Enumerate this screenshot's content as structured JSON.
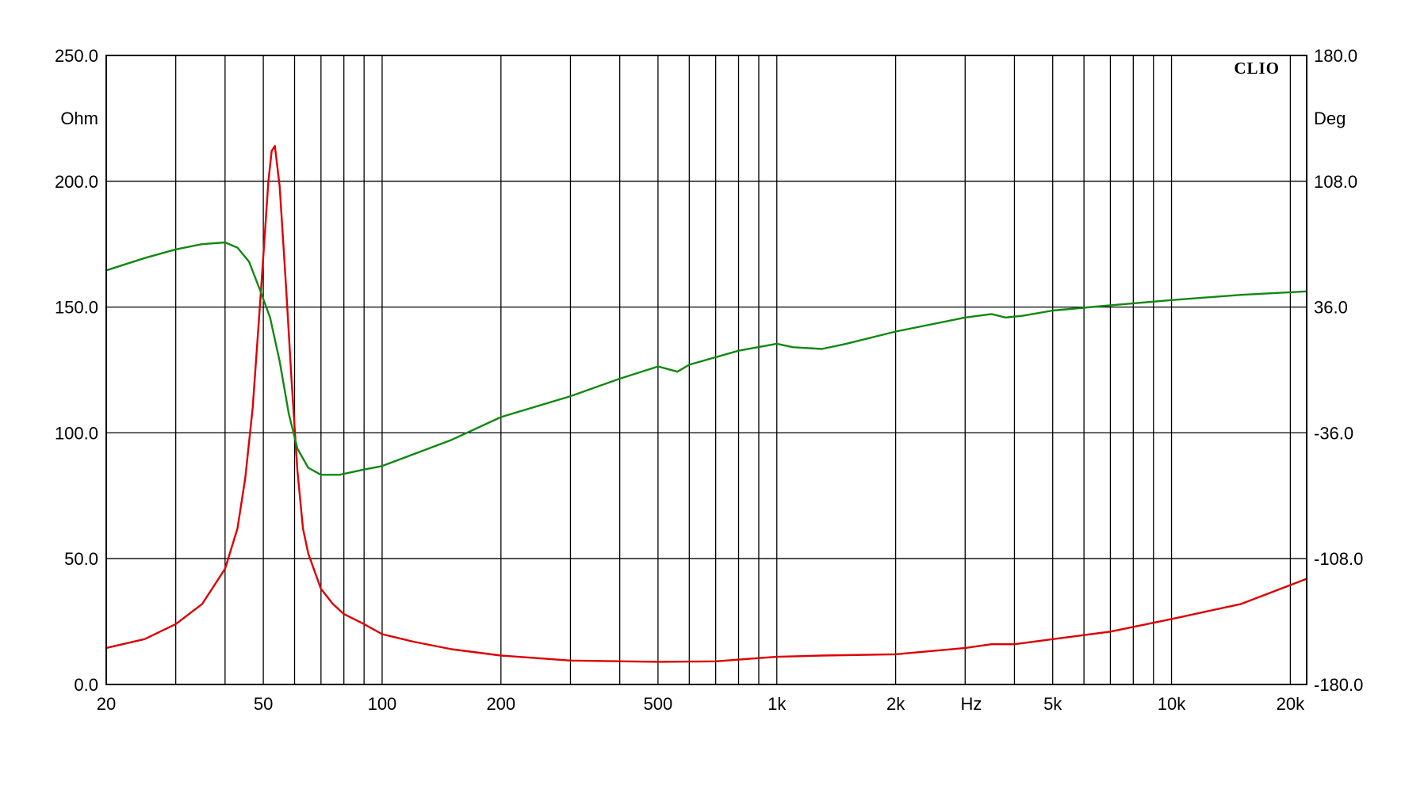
{
  "chart_data": {
    "type": "line",
    "brand": "CLIO",
    "y_left": {
      "unit_label": "Ohm",
      "range": [
        0,
        250
      ],
      "ticks": [
        "0.0",
        "50.0",
        "100.0",
        "150.0",
        "200.0",
        "250.0"
      ]
    },
    "y_right": {
      "unit_label": "Deg",
      "range": [
        -180,
        180
      ],
      "ticks": [
        "-180.0",
        "-108.0",
        "-36.0",
        "36.0",
        "108.0",
        "180.0"
      ]
    },
    "x_axis": {
      "scale": "log",
      "range": [
        20,
        22000
      ],
      "unit_label": "Hz",
      "tick_labels": [
        {
          "value": 20,
          "label": "20"
        },
        {
          "value": 50,
          "label": "50"
        },
        {
          "value": 100,
          "label": "100"
        },
        {
          "value": 200,
          "label": "200"
        },
        {
          "value": 500,
          "label": "500"
        },
        {
          "value": 1000,
          "label": "1k"
        },
        {
          "value": 2000,
          "label": "2k"
        },
        {
          "value": 5000,
          "label": "5k"
        },
        {
          "value": 10000,
          "label": "10k"
        },
        {
          "value": 20000,
          "label": "20k"
        }
      ],
      "gridlines": [
        20,
        30,
        40,
        50,
        60,
        70,
        80,
        90,
        100,
        200,
        300,
        400,
        500,
        600,
        700,
        800,
        900,
        1000,
        2000,
        3000,
        4000,
        5000,
        6000,
        7000,
        8000,
        9000,
        10000,
        20000
      ]
    },
    "grid": true,
    "series": [
      {
        "axis": "left",
        "color": "#dd0000",
        "points": [
          [
            20,
            14.5
          ],
          [
            25,
            18
          ],
          [
            30,
            24
          ],
          [
            35,
            32
          ],
          [
            40,
            46
          ],
          [
            43,
            62
          ],
          [
            45,
            82
          ],
          [
            47,
            110
          ],
          [
            49,
            150
          ],
          [
            50.5,
            180
          ],
          [
            51.5,
            200
          ],
          [
            52.5,
            212
          ],
          [
            53.5,
            214
          ],
          [
            55,
            198
          ],
          [
            57,
            160
          ],
          [
            59,
            120
          ],
          [
            61,
            85
          ],
          [
            63,
            62
          ],
          [
            65,
            52
          ],
          [
            70,
            38
          ],
          [
            75,
            32
          ],
          [
            80,
            28
          ],
          [
            90,
            24
          ],
          [
            100,
            20
          ],
          [
            120,
            17
          ],
          [
            150,
            14
          ],
          [
            200,
            11.5
          ],
          [
            300,
            9.5
          ],
          [
            500,
            9
          ],
          [
            700,
            9.2
          ],
          [
            900,
            10.5
          ],
          [
            1000,
            11
          ],
          [
            1300,
            11.5
          ],
          [
            2000,
            12
          ],
          [
            3000,
            14.5
          ],
          [
            3500,
            16
          ],
          [
            4000,
            16
          ],
          [
            5000,
            18
          ],
          [
            7000,
            21
          ],
          [
            10000,
            26
          ],
          [
            15000,
            32
          ],
          [
            22000,
            42
          ]
        ]
      },
      {
        "axis": "right",
        "color": "#118811",
        "points": [
          [
            20,
            57
          ],
          [
            25,
            64
          ],
          [
            30,
            69
          ],
          [
            35,
            72
          ],
          [
            40,
            73
          ],
          [
            43,
            70
          ],
          [
            46,
            62
          ],
          [
            49,
            46
          ],
          [
            52,
            30
          ],
          [
            55,
            5
          ],
          [
            58,
            -25
          ],
          [
            61,
            -45
          ],
          [
            65,
            -56
          ],
          [
            70,
            -60
          ],
          [
            78,
            -60
          ],
          [
            90,
            -57
          ],
          [
            100,
            -55
          ],
          [
            150,
            -40
          ],
          [
            200,
            -27
          ],
          [
            300,
            -15
          ],
          [
            400,
            -5
          ],
          [
            500,
            2
          ],
          [
            520,
            1
          ],
          [
            560,
            -1
          ],
          [
            600,
            3
          ],
          [
            800,
            11
          ],
          [
            1000,
            15
          ],
          [
            1100,
            13
          ],
          [
            1300,
            12
          ],
          [
            1500,
            15
          ],
          [
            2000,
            22
          ],
          [
            3000,
            30
          ],
          [
            3500,
            32
          ],
          [
            3800,
            30
          ],
          [
            4200,
            31
          ],
          [
            5000,
            34
          ],
          [
            7000,
            37
          ],
          [
            10000,
            40
          ],
          [
            15000,
            43
          ],
          [
            22000,
            45
          ]
        ]
      }
    ]
  }
}
